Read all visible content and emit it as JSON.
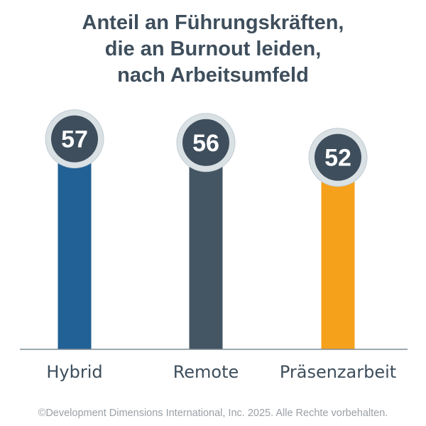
{
  "title_lines": [
    "Anteil an Führungskräften,",
    "die an Burnout leiden,",
    "nach Arbeitsumfeld"
  ],
  "footer": "©Development Dimensions International, Inc. 2025. Alle Rechte vorbehalten.",
  "colors": {
    "Hybrid": "#216195",
    "Remote": "#445563",
    "Präsenzarbeit": "#f5a11c",
    "circle_fill": "#3e4e5c",
    "circle_ring": "#d9e1e5",
    "axis": "#7f8c96"
  },
  "chart_data": {
    "type": "bar",
    "title": "Anteil an Führungskräften, die an Burnout leiden, nach Arbeitsumfeld",
    "categories": [
      "Hybrid",
      "Remote",
      "Präsenzarbeit"
    ],
    "values": [
      57,
      56,
      52
    ],
    "value_labels": [
      "57",
      "56",
      "52"
    ],
    "xlabel": "",
    "ylabel": "",
    "grid": false,
    "legend": "none"
  }
}
